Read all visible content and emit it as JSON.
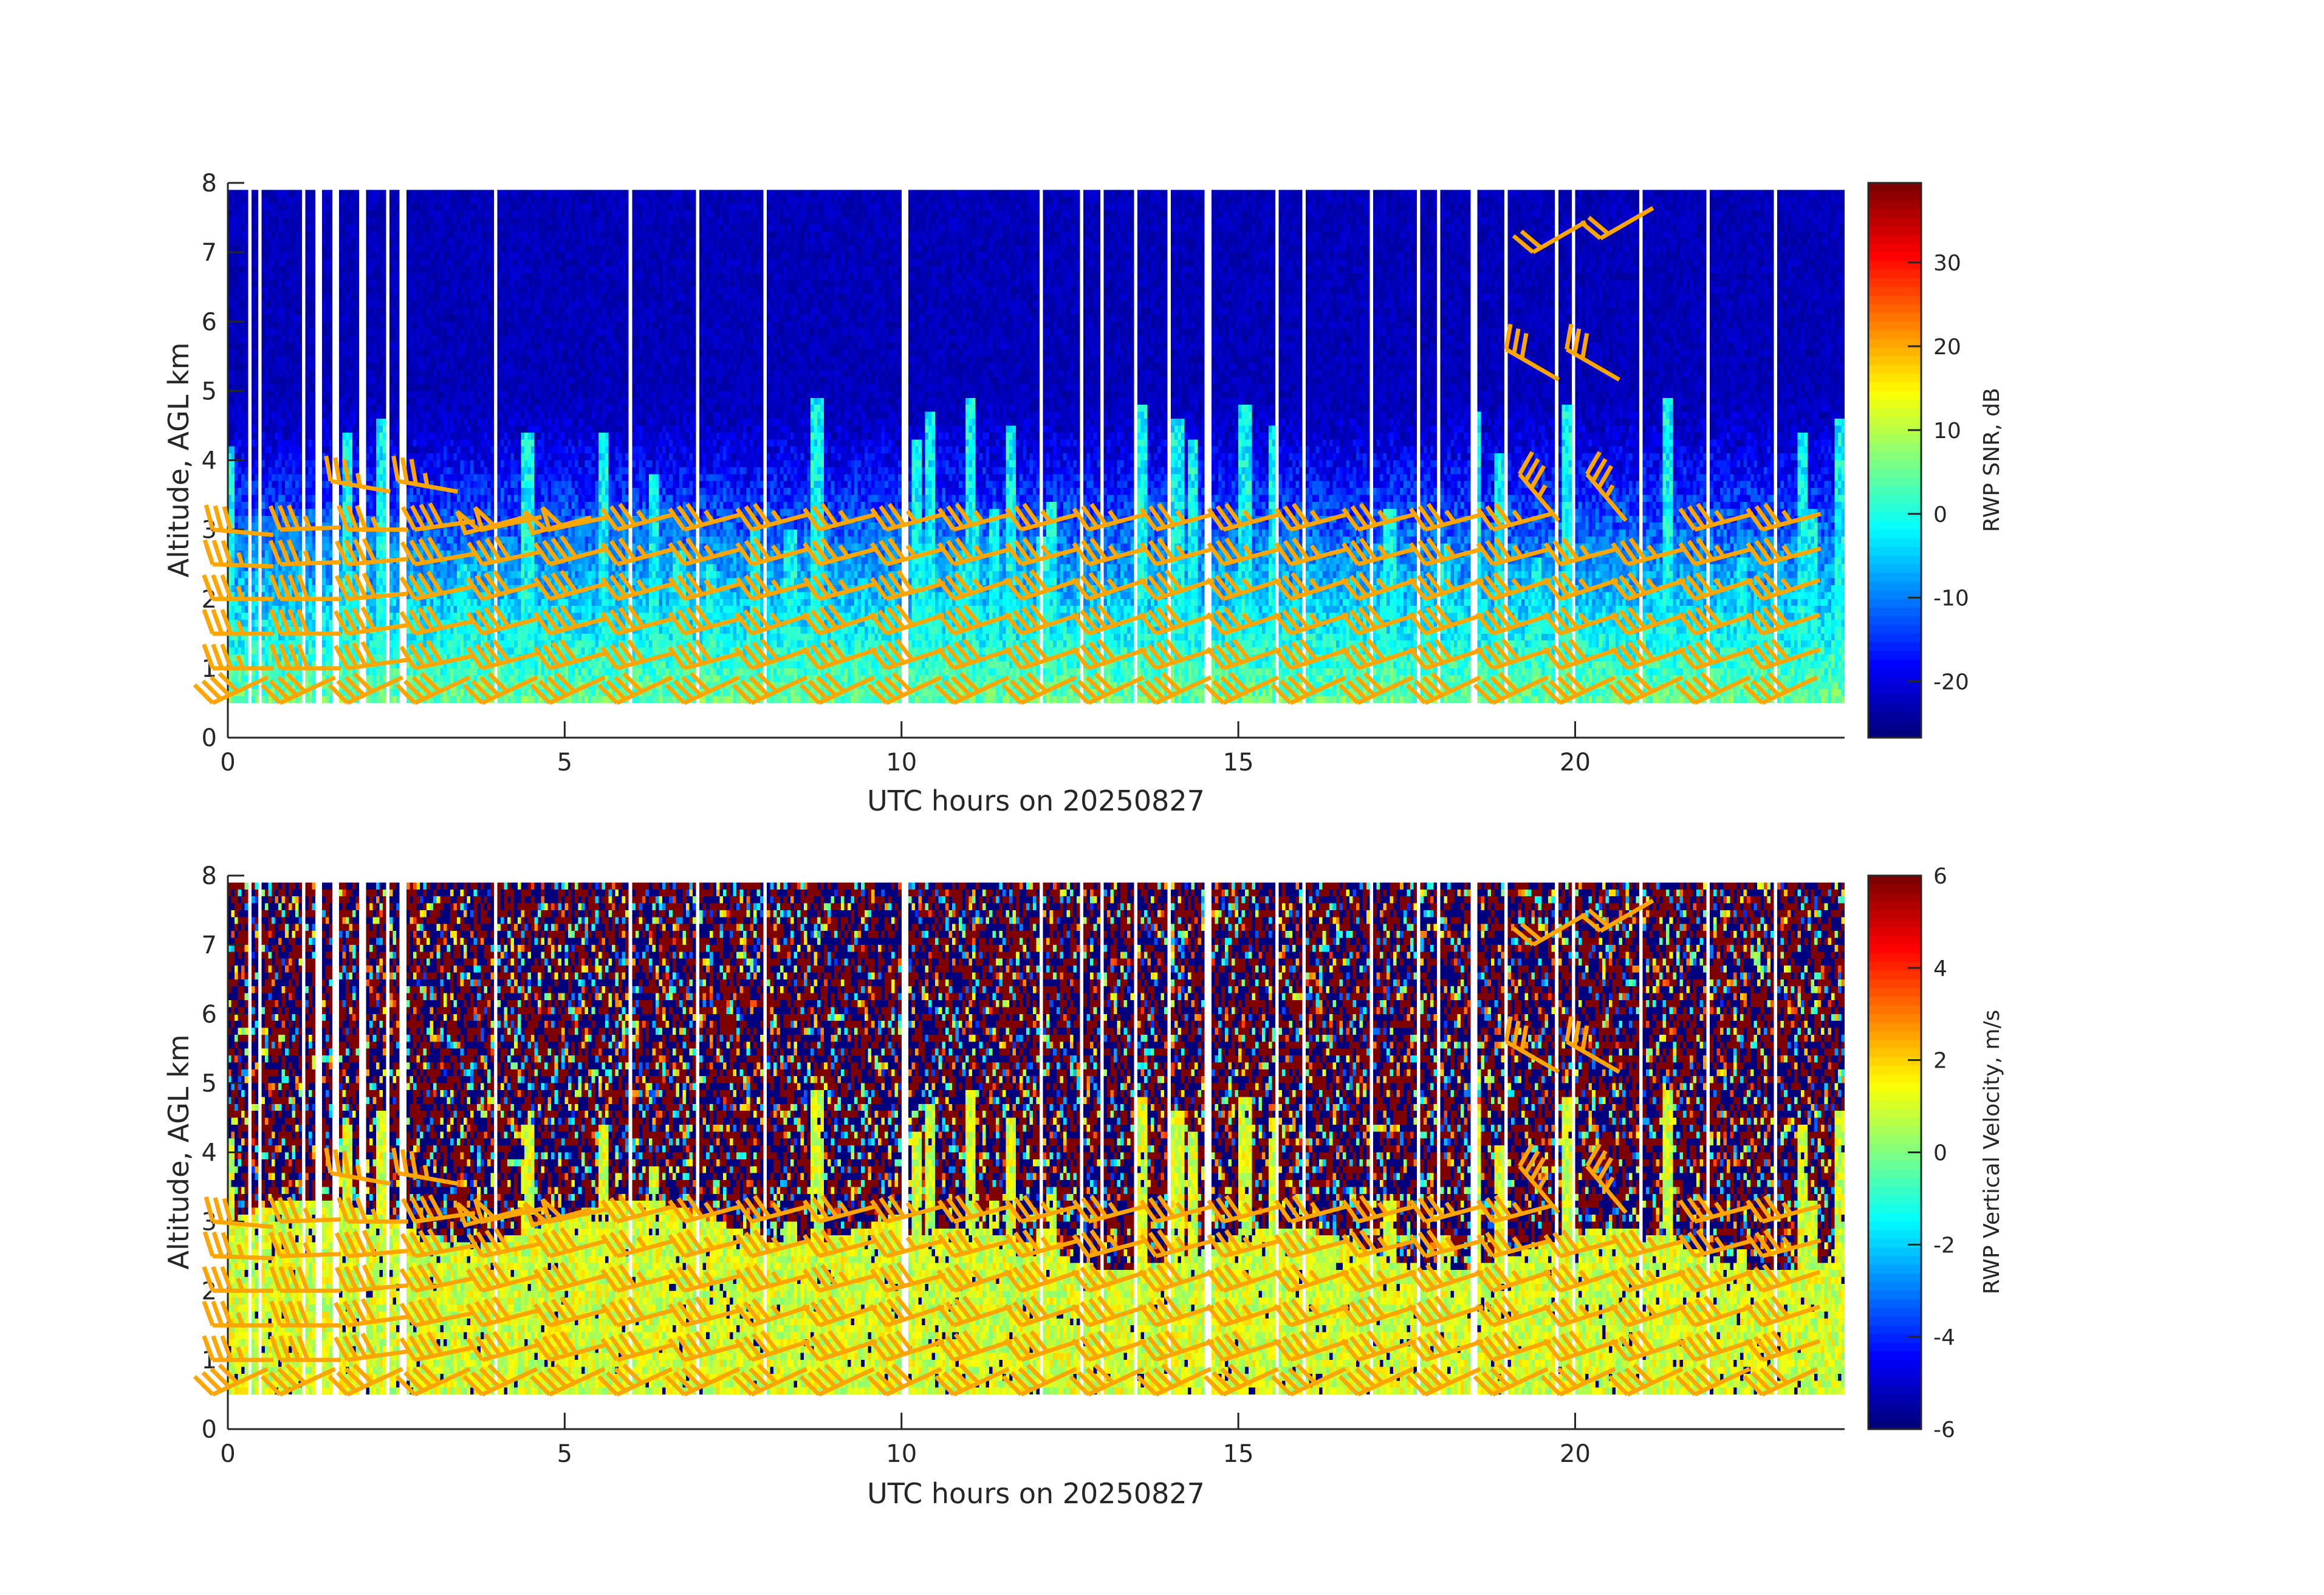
{
  "chart_data": [
    {
      "type": "heatmap",
      "xlabel": "UTC hours on 20250827",
      "ylabel": "Altitude, AGL km",
      "xlim": [
        0,
        24
      ],
      "ylim": [
        0,
        8
      ],
      "xticks": [
        "0",
        "5",
        "10",
        "15",
        "20"
      ],
      "yticks": [
        "0",
        "1",
        "2",
        "3",
        "4",
        "5",
        "6",
        "7",
        "8"
      ],
      "colorbar": {
        "label": "RWP SNR, dB",
        "range": [
          -26.7,
          39.5
        ],
        "ticks": [
          "30",
          "20",
          "10",
          "0",
          "-10",
          "-20"
        ],
        "colormap": "jet"
      },
      "field": "SNR: about 0 to 10 dB near 0.5 km, dropping to about -22 dB above about 3 km, with convective plumes reaching 4-5 km",
      "data_range_km": [
        0.5,
        7.9
      ]
    },
    {
      "type": "heatmap",
      "xlabel": "UTC hours on 20250827",
      "ylabel": "Altitude, AGL km",
      "xlim": [
        0,
        24
      ],
      "ylim": [
        0,
        8
      ],
      "xticks": [
        "0",
        "5",
        "10",
        "15",
        "20"
      ],
      "yticks": [
        "0",
        "1",
        "2",
        "3",
        "4",
        "5",
        "6",
        "7",
        "8"
      ],
      "colorbar": {
        "label": "RWP Vertical Velocity, m/s",
        "range": [
          -6,
          6
        ],
        "ticks": [
          "6",
          "4",
          "2",
          "0",
          "-2",
          "-4",
          "-6"
        ],
        "colormap": "jet"
      },
      "field": "Vertical velocity: about 0 to 2 m/s below about 3 km, noisy and saturated at ±6 m/s above",
      "data_range_km": [
        0.5,
        7.9
      ]
    }
  ],
  "data_gaps_utc_hours": [
    0.35,
    0.5,
    1.1,
    1.35,
    1.6,
    2.0,
    2.4,
    2.6,
    4.0,
    6.0,
    7.0,
    8.0,
    10.05,
    12.1,
    12.4,
    12.7,
    13.0,
    13.5,
    14.0,
    14.3,
    14.55,
    15.3,
    15.6,
    16.0,
    17.0,
    17.7,
    18.0,
    18.5,
    19.0,
    19.75,
    20.0,
    21.0,
    22.0,
    23.0
  ],
  "wind_barbs": {
    "color": "#FFA500",
    "altitudes_km": [
      0.5,
      1.0,
      1.5,
      2.0,
      2.5,
      3.0
    ],
    "hours": [
      0,
      1,
      2,
      3,
      4,
      5,
      6,
      7,
      8,
      9,
      10,
      11,
      12,
      13,
      14,
      15,
      16,
      17,
      18,
      19,
      20,
      21,
      22,
      23
    ],
    "speed_kt": [
      [
        40,
        35,
        35,
        35,
        35,
        30
      ],
      [
        40,
        40,
        40,
        40,
        35,
        35
      ],
      [
        40,
        40,
        40,
        40,
        40,
        35
      ],
      [
        40,
        40,
        40,
        40,
        40,
        40
      ],
      [
        40,
        40,
        40,
        40,
        40,
        50
      ],
      [
        40,
        40,
        40,
        40,
        40,
        50
      ],
      [
        40,
        40,
        40,
        35,
        35,
        35
      ],
      [
        40,
        40,
        40,
        35,
        35,
        35
      ],
      [
        40,
        40,
        35,
        35,
        35,
        35
      ],
      [
        40,
        40,
        40,
        35,
        35,
        35
      ],
      [
        40,
        40,
        40,
        40,
        35,
        35
      ],
      [
        40,
        40,
        40,
        35,
        35,
        35
      ],
      [
        40,
        40,
        40,
        40,
        35,
        35
      ],
      [
        40,
        40,
        40,
        35,
        35,
        35
      ],
      [
        40,
        40,
        40,
        40,
        35,
        35
      ],
      [
        40,
        40,
        35,
        35,
        35,
        35
      ],
      [
        40,
        40,
        35,
        35,
        35,
        35
      ],
      [
        40,
        40,
        40,
        35,
        35,
        35
      ],
      [
        40,
        40,
        40,
        35,
        35,
        35
      ],
      [
        40,
        40,
        40,
        35,
        35,
        35
      ],
      [
        40,
        40,
        35,
        35,
        35,
        null
      ],
      [
        40,
        40,
        35,
        35,
        35,
        null
      ],
      [
        40,
        40,
        40,
        35,
        35,
        35
      ],
      [
        40,
        40,
        40,
        35,
        35,
        35
      ]
    ],
    "dir_deg": [
      [
        245,
        270,
        270,
        270,
        272,
        275
      ],
      [
        245,
        270,
        270,
        270,
        268,
        268
      ],
      [
        245,
        262,
        262,
        265,
        265,
        270
      ],
      [
        245,
        258,
        258,
        258,
        260,
        262
      ],
      [
        245,
        255,
        255,
        255,
        258,
        258
      ],
      [
        245,
        255,
        255,
        255,
        255,
        258
      ],
      [
        245,
        255,
        255,
        255,
        255,
        255
      ],
      [
        245,
        255,
        255,
        255,
        255,
        255
      ],
      [
        245,
        252,
        252,
        255,
        255,
        255
      ],
      [
        245,
        252,
        252,
        255,
        255,
        255
      ],
      [
        245,
        252,
        252,
        255,
        255,
        255
      ],
      [
        245,
        252,
        252,
        252,
        255,
        255
      ],
      [
        245,
        252,
        252,
        252,
        255,
        255
      ],
      [
        245,
        252,
        252,
        252,
        255,
        255
      ],
      [
        245,
        252,
        252,
        252,
        255,
        255
      ],
      [
        245,
        252,
        252,
        252,
        255,
        255
      ],
      [
        245,
        252,
        252,
        252,
        255,
        255
      ],
      [
        245,
        252,
        252,
        252,
        255,
        255
      ],
      [
        245,
        252,
        252,
        252,
        255,
        255
      ],
      [
        245,
        252,
        252,
        252,
        255,
        255
      ],
      [
        245,
        252,
        252,
        252,
        255,
        null
      ],
      [
        245,
        252,
        252,
        252,
        255,
        null
      ],
      [
        245,
        252,
        252,
        252,
        255,
        255
      ],
      [
        245,
        252,
        252,
        252,
        255,
        255
      ]
    ],
    "extra": [
      [
        1.75,
        3.7,
        35,
        280
      ],
      [
        2.75,
        3.7,
        35,
        280
      ],
      [
        3.75,
        2.95,
        50,
        255
      ],
      [
        4.75,
        2.95,
        50,
        255
      ],
      [
        19.2,
        5.6,
        30,
        300
      ],
      [
        20.1,
        5.6,
        30,
        300
      ],
      [
        19.6,
        7.0,
        20,
        240
      ],
      [
        20.6,
        7.2,
        20,
        240
      ],
      [
        19.4,
        3.8,
        35,
        320
      ],
      [
        20.4,
        3.8,
        35,
        320
      ]
    ]
  }
}
